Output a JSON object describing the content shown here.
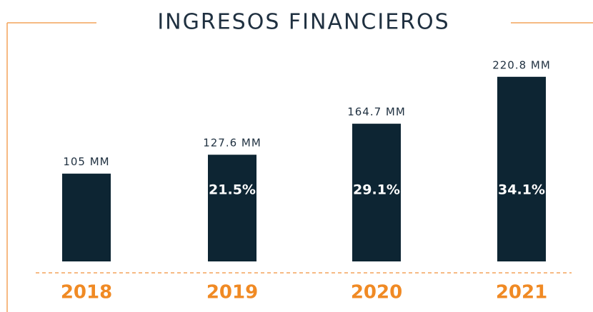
{
  "chart_data": {
    "type": "bar",
    "title": "INGRESOS FINANCIEROS",
    "categories": [
      "2018",
      "2019",
      "2020",
      "2021"
    ],
    "values": [
      105,
      127.6,
      164.7,
      220.8
    ],
    "value_labels": [
      "105 MM",
      "127.6 MM",
      "164.7 MM",
      "220.8 MM"
    ],
    "growth_labels": [
      null,
      "21.5%",
      "29.1%",
      "34.1%"
    ],
    "color": "#0d2533",
    "accent_color": "#f08a24",
    "ylim": [
      0,
      230
    ]
  }
}
